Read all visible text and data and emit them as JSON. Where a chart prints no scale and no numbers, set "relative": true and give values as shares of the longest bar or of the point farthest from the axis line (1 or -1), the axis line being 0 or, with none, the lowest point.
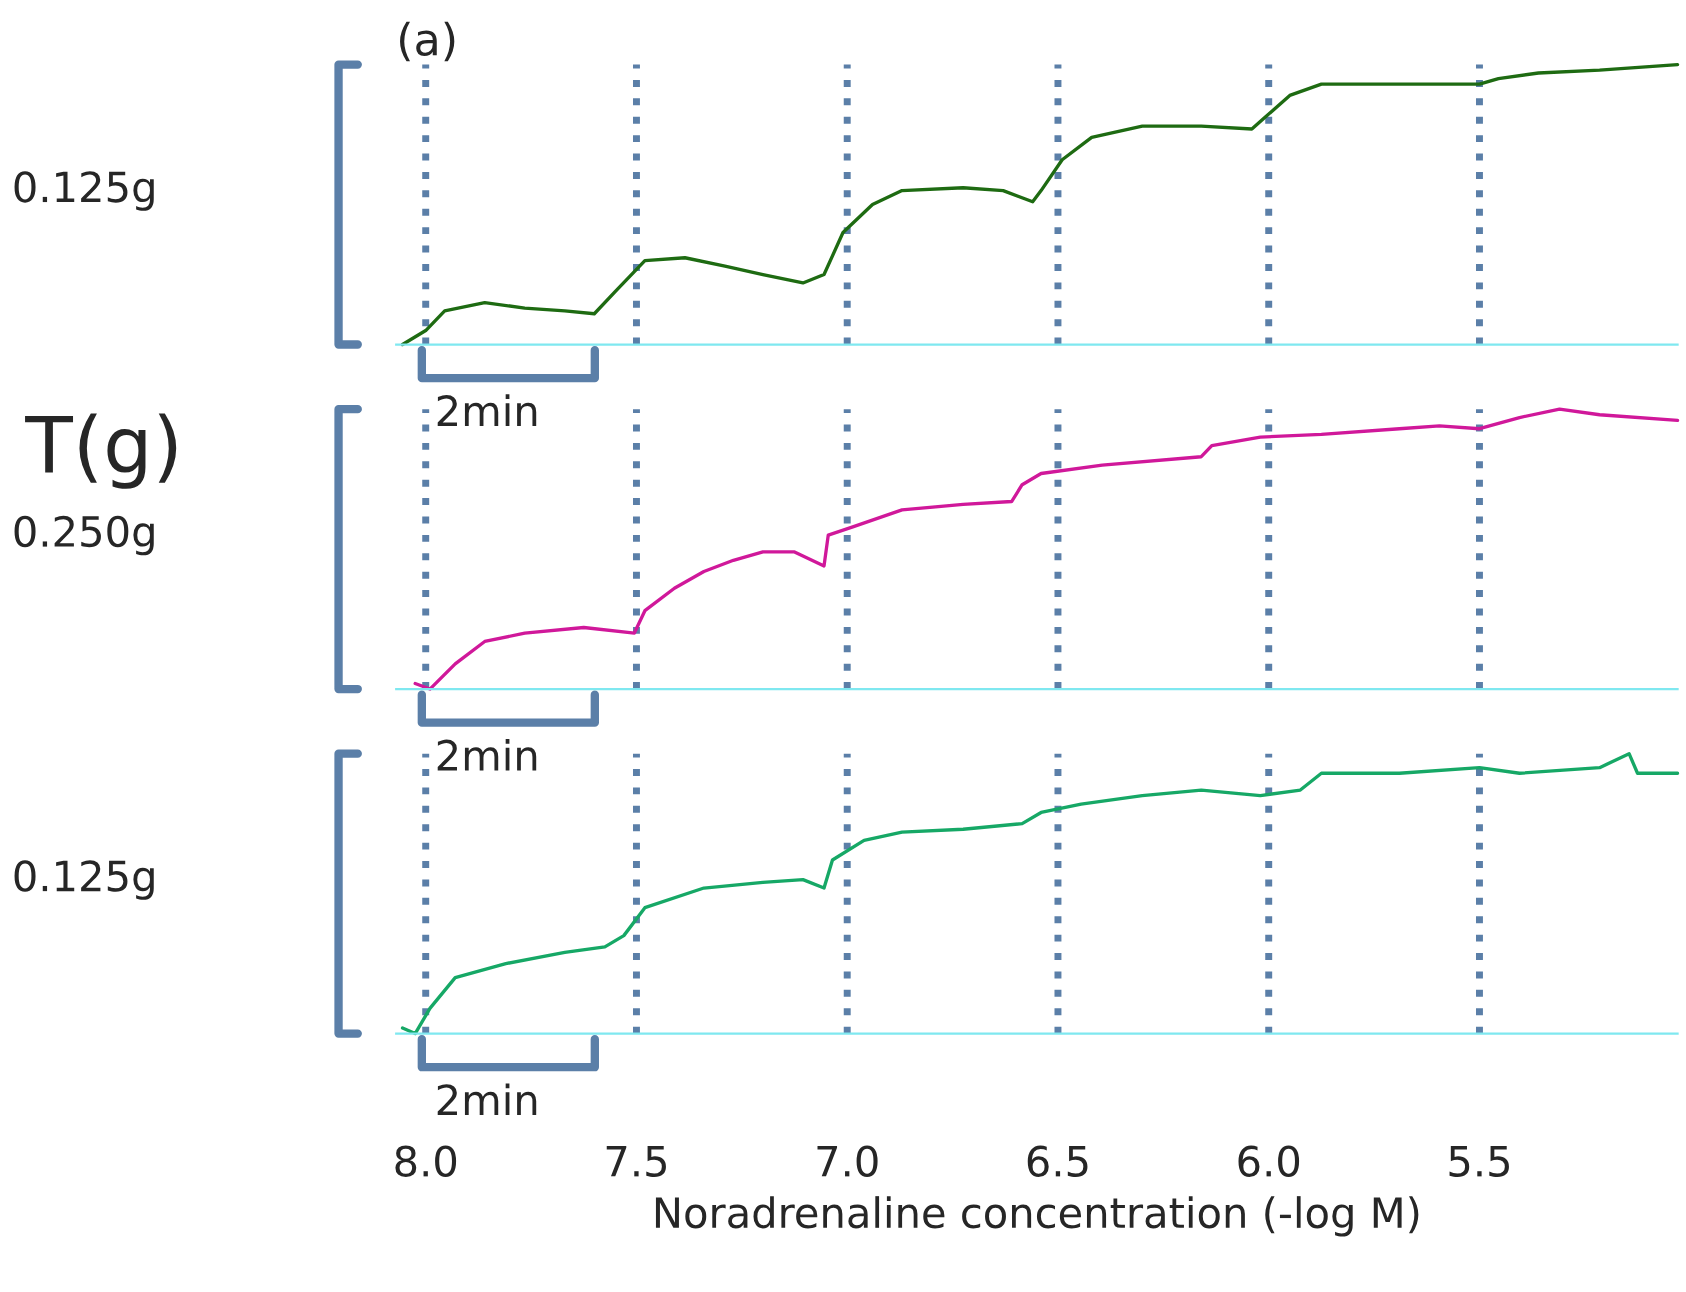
{
  "chart_data": [
    {
      "type": "line",
      "title": "(a)",
      "relative": true,
      "xlim": [
        8.07,
        5.03
      ],
      "tick_labels": false,
      "legend": false,
      "grid": false,
      "annotations": [
        "0.125g",
        "2min"
      ],
      "ref_lines": [
        {
          "axis": "x",
          "value": 8.0,
          "color": "#5b7fa8",
          "line_style": "dotted"
        },
        {
          "axis": "x",
          "value": 7.5,
          "color": "#5b7fa8",
          "line_style": "dotted"
        },
        {
          "axis": "x",
          "value": 7.0,
          "color": "#5b7fa8",
          "line_style": "dotted"
        },
        {
          "axis": "x",
          "value": 6.5,
          "color": "#5b7fa8",
          "line_style": "dotted"
        },
        {
          "axis": "x",
          "value": 6.0,
          "color": "#5b7fa8",
          "line_style": "dotted"
        },
        {
          "axis": "x",
          "value": 5.5,
          "color": "#5b7fa8",
          "line_style": "dotted"
        }
      ],
      "series": [
        {
          "color": "#1e6b12",
          "x": [
            8.055,
            8.0,
            7.955,
            7.86,
            7.765,
            7.67,
            7.6,
            7.55,
            7.48,
            7.385,
            7.29,
            7.2,
            7.105,
            7.055,
            7.01,
            6.94,
            6.87,
            6.725,
            6.63,
            6.56,
            6.54,
            6.49,
            6.42,
            6.3,
            6.16,
            6.04,
            6.01,
            5.95,
            5.875,
            5.69,
            5.5,
            5.455,
            5.36,
            5.215,
            5.03
          ],
          "values": [
            0,
            0.05,
            0.12,
            0.15,
            0.13,
            0.12,
            0.11,
            0.19,
            0.3,
            0.31,
            0.28,
            0.25,
            0.22,
            0.25,
            0.4,
            0.5,
            0.55,
            0.56,
            0.55,
            0.51,
            0.55,
            0.66,
            0.74,
            0.78,
            0.78,
            0.77,
            0.81,
            0.89,
            0.93,
            0.93,
            0.93,
            0.95,
            0.97,
            0.98,
            1.0
          ]
        }
      ]
    },
    {
      "type": "line",
      "ylabel": "T(g)",
      "relative": true,
      "xlim": [
        8.07,
        5.03
      ],
      "tick_labels": false,
      "legend": false,
      "grid": false,
      "annotations": [
        "0.250g",
        "2min"
      ],
      "ref_lines": [
        {
          "axis": "x",
          "value": 8.0,
          "color": "#5b7fa8",
          "line_style": "dotted"
        },
        {
          "axis": "x",
          "value": 7.5,
          "color": "#5b7fa8",
          "line_style": "dotted"
        },
        {
          "axis": "x",
          "value": 7.0,
          "color": "#5b7fa8",
          "line_style": "dotted"
        },
        {
          "axis": "x",
          "value": 6.5,
          "color": "#5b7fa8",
          "line_style": "dotted"
        },
        {
          "axis": "x",
          "value": 6.0,
          "color": "#5b7fa8",
          "line_style": "dotted"
        },
        {
          "axis": "x",
          "value": 5.5,
          "color": "#5b7fa8",
          "line_style": "dotted"
        }
      ],
      "series": [
        {
          "color": "#d0189a",
          "x": [
            8.025,
            7.99,
            7.93,
            7.86,
            7.765,
            7.625,
            7.505,
            7.48,
            7.41,
            7.34,
            7.27,
            7.2,
            7.125,
            7.055,
            7.045,
            6.985,
            6.87,
            6.725,
            6.61,
            6.585,
            6.54,
            6.395,
            6.16,
            6.135,
            6.02,
            5.875,
            5.69,
            5.595,
            5.5,
            5.405,
            5.31,
            5.215,
            5.03
          ],
          "values": [
            0.02,
            0,
            0.09,
            0.17,
            0.2,
            0.22,
            0.2,
            0.28,
            0.36,
            0.42,
            0.46,
            0.49,
            0.49,
            0.44,
            0.55,
            0.58,
            0.64,
            0.66,
            0.67,
            0.73,
            0.77,
            0.8,
            0.83,
            0.87,
            0.9,
            0.91,
            0.93,
            0.94,
            0.93,
            0.97,
            1.0,
            0.98,
            0.96
          ]
        }
      ]
    },
    {
      "type": "line",
      "xlabel": "Noradrenaline concentration (-log M)",
      "relative": true,
      "xlim": [
        8.07,
        5.03
      ],
      "tick_labels": "x",
      "legend": false,
      "grid": false,
      "xticks": [
        {
          "value": 8,
          "label": "8.0"
        },
        {
          "value": 7.5,
          "label": "7.5"
        },
        {
          "value": 7,
          "label": "7.0"
        },
        {
          "value": 6.5,
          "label": "6.5"
        },
        {
          "value": 6,
          "label": "6.0"
        },
        {
          "value": 5.5,
          "label": "5.5"
        }
      ],
      "annotations": [
        "0.125g",
        "2min"
      ],
      "ref_lines": [
        {
          "axis": "x",
          "value": 8.0,
          "color": "#5b7fa8",
          "line_style": "dotted"
        },
        {
          "axis": "x",
          "value": 7.5,
          "color": "#5b7fa8",
          "line_style": "dotted"
        },
        {
          "axis": "x",
          "value": 7.0,
          "color": "#5b7fa8",
          "line_style": "dotted"
        },
        {
          "axis": "x",
          "value": 6.5,
          "color": "#5b7fa8",
          "line_style": "dotted"
        },
        {
          "axis": "x",
          "value": 6.0,
          "color": "#5b7fa8",
          "line_style": "dotted"
        },
        {
          "axis": "x",
          "value": 5.5,
          "color": "#5b7fa8",
          "line_style": "dotted"
        }
      ],
      "series": [
        {
          "color": "#16a866",
          "x": [
            8.055,
            8.025,
            7.99,
            7.93,
            7.81,
            7.67,
            7.575,
            7.53,
            7.48,
            7.34,
            7.2,
            7.105,
            7.055,
            7.035,
            6.96,
            6.87,
            6.725,
            6.585,
            6.54,
            6.445,
            6.3,
            6.16,
            6.02,
            5.925,
            5.875,
            5.785,
            5.69,
            5.5,
            5.405,
            5.215,
            5.145,
            5.125,
            5.03
          ],
          "values": [
            0.02,
            0,
            0.09,
            0.2,
            0.25,
            0.29,
            0.31,
            0.35,
            0.45,
            0.52,
            0.54,
            0.55,
            0.52,
            0.62,
            0.69,
            0.72,
            0.73,
            0.75,
            0.79,
            0.82,
            0.85,
            0.87,
            0.85,
            0.87,
            0.93,
            0.93,
            0.93,
            0.95,
            0.93,
            0.95,
            1.0,
            0.93,
            0.93
          ]
        }
      ]
    }
  ]
}
